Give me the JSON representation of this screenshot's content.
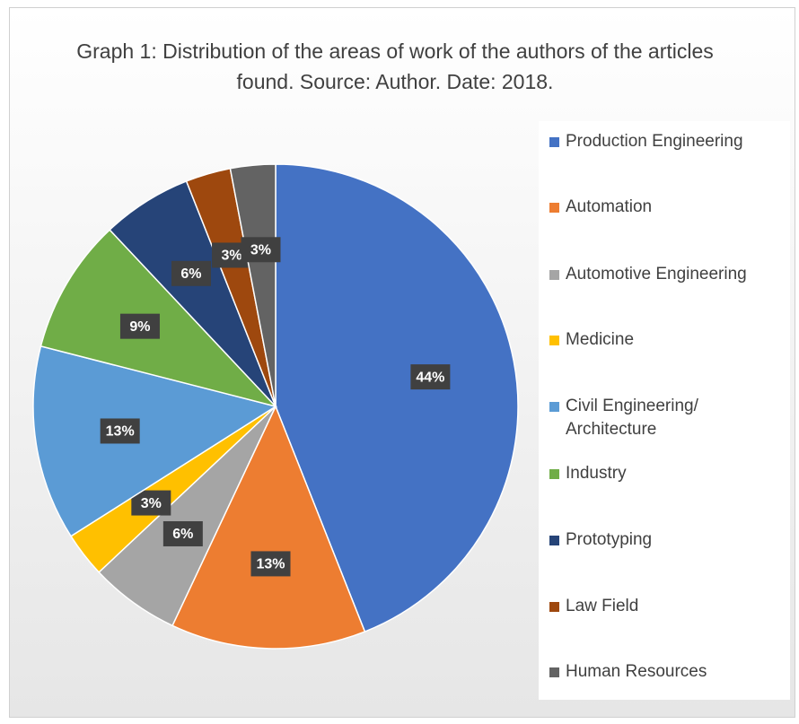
{
  "chart_data": {
    "type": "pie",
    "title": "Graph 1: Distribution of the areas of work of the authors of the articles found. Source: Author. Date: 2018.",
    "categories": [
      "Production Engineering",
      "Automation",
      "Automotive Engineering",
      "Medicine",
      "Civil Engineering/ Architecture",
      "Industry",
      "Prototyping",
      "Law Field",
      "Human Resources"
    ],
    "values": [
      44,
      13,
      6,
      3,
      13,
      9,
      6,
      3,
      3
    ],
    "value_labels": [
      "44%",
      "13%",
      "6%",
      "3%",
      "13%",
      "9%",
      "6%",
      "3%",
      "3%"
    ],
    "colors": [
      "#4472c4",
      "#ed7d31",
      "#a5a5a5",
      "#ffc000",
      "#5b9bd5",
      "#70ad47",
      "#264478",
      "#9e480e",
      "#636363"
    ],
    "legend": "right"
  }
}
